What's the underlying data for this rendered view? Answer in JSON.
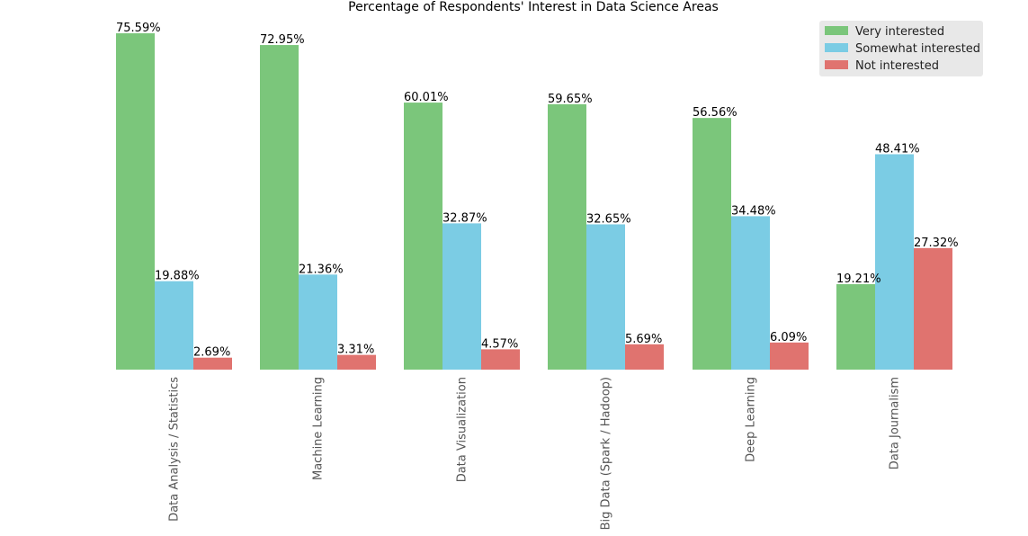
{
  "chart_data": {
    "type": "bar",
    "title": "Percentage of Respondents' Interest in Data Science Areas",
    "xlabel": "",
    "ylabel": "",
    "categories": [
      "Data Analysis / Statistics",
      "Machine Learning",
      "Data Visualization",
      "Big Data (Spark / Hadoop)",
      "Deep Learning",
      "Data Journalism"
    ],
    "series": [
      {
        "name": "Very interested",
        "color": "#7bc67b",
        "values": [
          75.59,
          72.95,
          60.01,
          59.65,
          56.56,
          19.21
        ]
      },
      {
        "name": "Somewhat interested",
        "color": "#7bcce4",
        "values": [
          19.88,
          21.36,
          32.87,
          32.65,
          34.48,
          48.41
        ]
      },
      {
        "name": "Not interested",
        "color": "#e0736f",
        "values": [
          2.69,
          3.31,
          4.57,
          5.69,
          6.09,
          27.32
        ]
      }
    ],
    "ylim": [
      0,
      76
    ],
    "grid": false,
    "legend_position": "top-right",
    "value_label_suffix": "%"
  }
}
